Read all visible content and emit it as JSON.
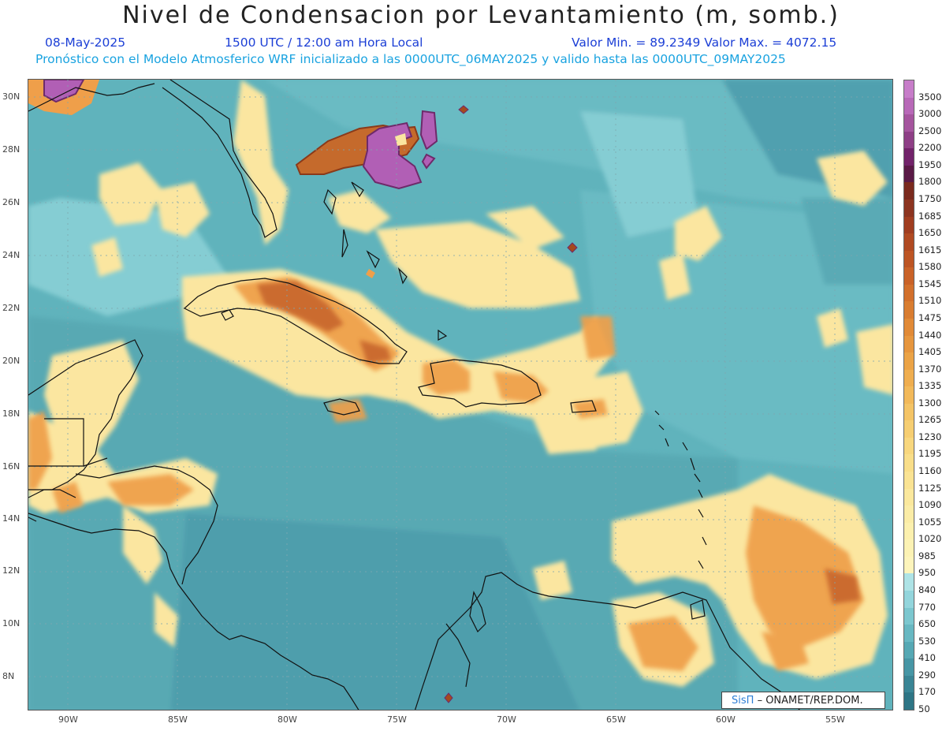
{
  "header": {
    "title": "Nivel de Condensacion por Levantamiento (m, somb.)",
    "date": "08-May-2025",
    "time": "1500 UTC / 12:00 am Hora Local",
    "minmax": "Valor Min. = 89.2349   Valor Max. = 4072.15",
    "forecast": "Pronóstico con el Modelo Atmosferico WRF inicializado a las 0000UTC_06MAY2025 y valido hasta las  0000UTC_09MAY2025"
  },
  "axes": {
    "lat_labels": [
      "30N",
      "28N",
      "26N",
      "24N",
      "22N",
      "20N",
      "18N",
      "16N",
      "14N",
      "12N",
      "10N",
      "8N"
    ],
    "lon_labels": [
      "90W",
      "85W",
      "80W",
      "75W",
      "70W",
      "65W",
      "60W",
      "55W"
    ]
  },
  "colorbar": {
    "levels": [
      "3500",
      "3000",
      "2500",
      "2200",
      "1950",
      "1800",
      "1750",
      "1685",
      "1650",
      "1615",
      "1580",
      "1545",
      "1510",
      "1475",
      "1440",
      "1405",
      "1370",
      "1335",
      "1300",
      "1265",
      "1230",
      "1195",
      "1160",
      "1125",
      "1090",
      "1055",
      "1020",
      "985",
      "950",
      "840",
      "770",
      "650",
      "530",
      "410",
      "290",
      "170",
      "50"
    ],
    "colors": [
      "#c77dc9",
      "#b869b8",
      "#a5559e",
      "#8e3f86",
      "#72236a",
      "#5a1a46",
      "#7a2a1e",
      "#8c3420",
      "#a03d20",
      "#b04a22",
      "#bd5524",
      "#c96228",
      "#d2702c",
      "#d97d31",
      "#e18a37",
      "#e6963e",
      "#eba346",
      "#efae50",
      "#f2b95a",
      "#f4c466",
      "#f6ce72",
      "#f8d77e",
      "#f9de89",
      "#fae393",
      "#fbe89d",
      "#fbeca6",
      "#fcf0ae",
      "#fcf2b4",
      "#fdf4bb",
      "#aee3e6",
      "#93d5dc",
      "#7cc7cf",
      "#68b8c2",
      "#56a8b4",
      "#4796a5",
      "#3a8595",
      "#2e7585"
    ]
  },
  "credit": {
    "brand": "SisΠ",
    "text": "– ONAMET/REP.DOM."
  }
}
